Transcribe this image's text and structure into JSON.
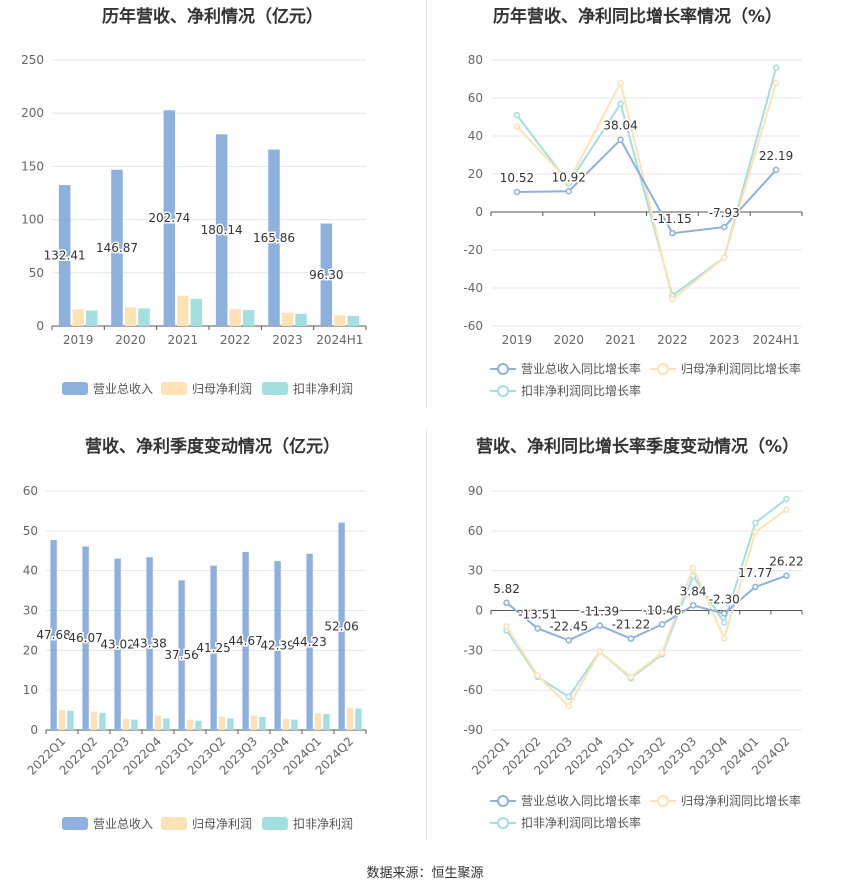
{
  "footer": {
    "source": "数据来源：恒生聚源"
  },
  "panels": [
    {
      "title": "历年营收、净利情况（亿元）"
    },
    {
      "title": "历年营收、净利同比增长率情况（%）"
    },
    {
      "title": "营收、净利季度变动情况（亿元）"
    },
    {
      "title": "营收、净利同比增长率季度变动情况（%）"
    }
  ],
  "chart_data": [
    {
      "type": "bar",
      "title": "历年营收、净利情况（亿元）",
      "categories": [
        "2019",
        "2020",
        "2021",
        "2022",
        "2023",
        "2024H1"
      ],
      "ylim": [
        0,
        250
      ],
      "yticks": [
        0,
        50,
        100,
        150,
        200,
        250
      ],
      "legend_position": "bottom",
      "grid": true,
      "series": [
        {
          "name": "营业总收入",
          "color": "#8eb0dd",
          "values": [
            132.41,
            146.87,
            202.74,
            180.14,
            165.86,
            96.3
          ],
          "labels": [
            "132.41",
            "146.87",
            "202.74",
            "180.14",
            "165.86",
            "96.30"
          ]
        },
        {
          "name": "归母净利润",
          "color": "#fde2b5",
          "values": [
            15.5,
            17.5,
            28.5,
            16.0,
            12.5,
            10.0
          ]
        },
        {
          "name": "扣非净利润",
          "color": "#a4dfdf",
          "values": [
            14.5,
            16.5,
            25.5,
            15.0,
            11.5,
            9.5
          ]
        }
      ]
    },
    {
      "type": "line",
      "title": "历年营收、净利同比增长率情况（%）",
      "categories": [
        "2019",
        "2020",
        "2021",
        "2022",
        "2023",
        "2024H1"
      ],
      "ylim": [
        -60,
        80
      ],
      "yticks": [
        -60,
        -40,
        -20,
        0,
        20,
        40,
        60,
        80
      ],
      "legend_position": "bottom",
      "grid": true,
      "series": [
        {
          "name": "营业总收入同比增长率",
          "color": "#8eb0dd",
          "values": [
            10.52,
            10.92,
            38.04,
            -11.15,
            -7.93,
            22.19
          ],
          "labels": [
            "10.52",
            "10.92",
            "38.04",
            "-11.15",
            "-7.93",
            "22.19"
          ]
        },
        {
          "name": "归母净利润同比增长率",
          "color": "#fde2b5",
          "values": [
            45,
            16,
            68,
            -46,
            -24,
            68
          ]
        },
        {
          "name": "扣非净利润同比增长率",
          "color": "#a4dfdf",
          "values": [
            51,
            15,
            57,
            -44,
            -24,
            76
          ]
        }
      ]
    },
    {
      "type": "bar",
      "title": "营收、净利季度变动情况（亿元）",
      "categories": [
        "2022Q1",
        "2022Q2",
        "2022Q3",
        "2022Q4",
        "2023Q1",
        "2023Q2",
        "2023Q3",
        "2023Q4",
        "2024Q1",
        "2024Q2"
      ],
      "ylim": [
        0,
        60
      ],
      "yticks": [
        0,
        10,
        20,
        30,
        40,
        50,
        60
      ],
      "legend_position": "bottom",
      "grid": true,
      "series": [
        {
          "name": "营业总收入",
          "color": "#8eb0dd",
          "values": [
            47.68,
            46.07,
            43.02,
            43.38,
            37.56,
            41.25,
            44.67,
            42.39,
            44.23,
            52.06
          ],
          "labels": [
            "47.68",
            "46.07",
            "43.02",
            "43.38",
            "37.56",
            "41.25",
            "44.67",
            "42.39",
            "44.23",
            "52.06"
          ]
        },
        {
          "name": "归母净利润",
          "color": "#fde2b5",
          "values": [
            5.0,
            4.6,
            2.8,
            3.6,
            2.6,
            3.3,
            3.6,
            2.8,
            4.2,
            5.6
          ]
        },
        {
          "name": "扣非净利润",
          "color": "#a4dfdf",
          "values": [
            4.8,
            4.3,
            2.6,
            2.9,
            2.3,
            2.9,
            3.3,
            2.6,
            4.0,
            5.4
          ]
        }
      ]
    },
    {
      "type": "line",
      "title": "营收、净利同比增长率季度变动情况（%）",
      "categories": [
        "2022Q1",
        "2022Q2",
        "2022Q3",
        "2022Q4",
        "2023Q1",
        "2023Q2",
        "2023Q3",
        "2023Q4",
        "2024Q1",
        "2024Q2"
      ],
      "ylim": [
        -90,
        90
      ],
      "yticks": [
        -90,
        -60,
        -30,
        0,
        30,
        60,
        90
      ],
      "legend_position": "bottom",
      "grid": true,
      "series": [
        {
          "name": "营业总收入同比增长率",
          "color": "#8eb0dd",
          "values": [
            5.82,
            -13.51,
            -22.45,
            -11.39,
            -21.22,
            -10.46,
            3.84,
            -2.3,
            17.77,
            26.22
          ],
          "labels": [
            "5.82",
            "-13.51",
            "-22.45",
            "-11.39",
            "-21.22",
            "-10.46",
            "3.84",
            "-2.30",
            "17.77",
            "26.22"
          ]
        },
        {
          "name": "归母净利润同比增长率",
          "color": "#fde2b5",
          "values": [
            -12,
            -49,
            -72,
            -31,
            -50,
            -32,
            32,
            -21,
            59,
            76
          ]
        },
        {
          "name": "扣非净利润同比增长率",
          "color": "#a4dfdf",
          "values": [
            -15,
            -50,
            -65,
            -31,
            -51,
            -33,
            26,
            -9,
            66,
            84
          ]
        }
      ]
    }
  ]
}
